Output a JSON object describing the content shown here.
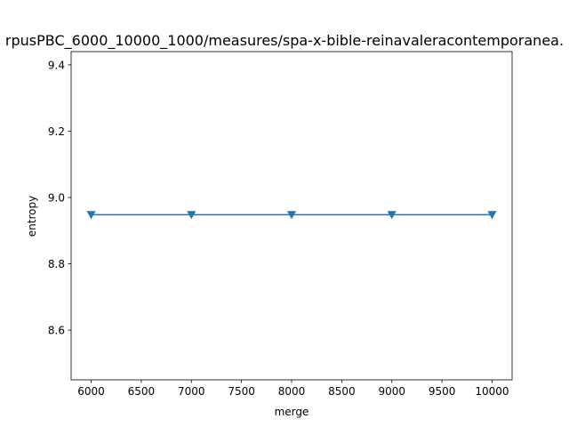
{
  "chart_data": {
    "type": "line",
    "title": "rpusPBC_6000_10000_1000/measures/spa-x-bible-reinavaleracontemporanea.",
    "xlabel": "merge",
    "ylabel": "entropy",
    "xlim": [
      5800,
      10200
    ],
    "ylim": [
      8.45,
      9.44
    ],
    "xticks": [
      6000,
      6500,
      7000,
      7500,
      8000,
      8500,
      9000,
      9500,
      10000
    ],
    "yticks": [
      8.6,
      8.8,
      9.0,
      9.2,
      9.4
    ],
    "ytick_labels": [
      "8.6",
      "8.8",
      "9.0",
      "9.2",
      "9.4"
    ],
    "grid": false,
    "series": [
      {
        "x": [
          6000,
          7000,
          8000,
          9000,
          10000
        ],
        "values": [
          8.948,
          8.948,
          8.948,
          8.948,
          8.948
        ],
        "marker": "triangle-down",
        "color": "#1f77b4"
      }
    ]
  }
}
